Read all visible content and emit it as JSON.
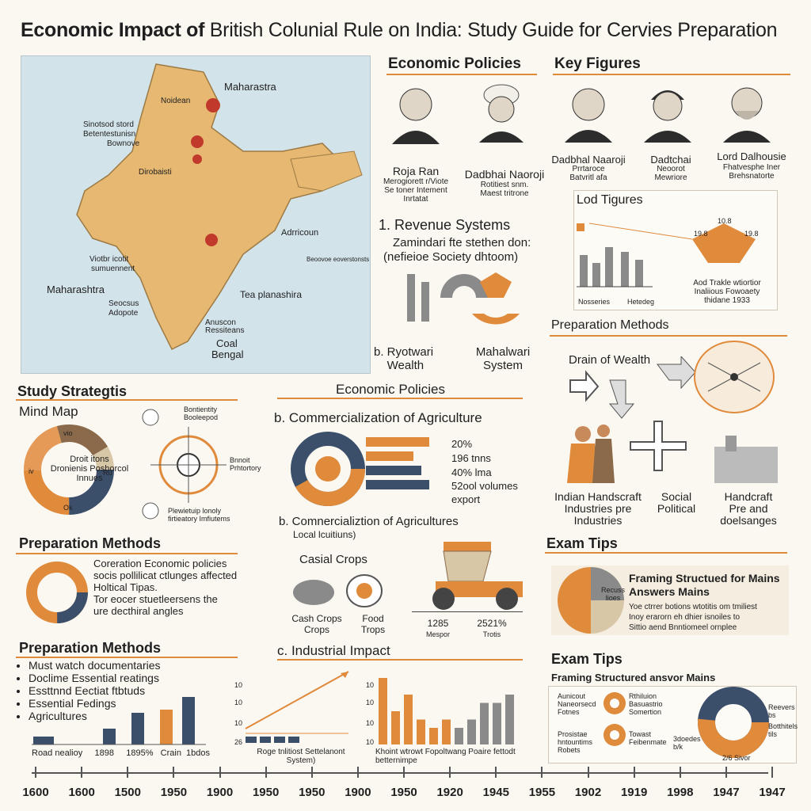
{
  "header": {
    "title_bold": "Economic Impact of",
    "title_rest": "British Colunial Rule on India: Study Guide for Cervies Preparation"
  },
  "map": {
    "labels": [
      "Maharastra",
      "Noidean",
      "Sinotsod stord",
      "Betentestunisn",
      "Bownove",
      "Dirobaisti",
      "Viotbr icotit",
      "sumuennent",
      "Maharashtra",
      "Seocsus",
      "Adopote",
      "Adrricoun",
      "Beoovoe eoverstonsts",
      "Tea planashira",
      "Anuscon",
      "Ressiteans",
      "Coal",
      "Bengal"
    ]
  },
  "econ_policies_top": {
    "heading": "Economic Policies",
    "p1_name": "Roja Ran",
    "p1_sub": "Merogiorett r/Viote\nSe toner Intement\nInrtatat",
    "p2_name": "Dadbhai Naoroji",
    "p2_sub": "Rotitiest snm.\nMaest tritrone"
  },
  "key_figures": {
    "heading": "Key Figures",
    "f1_name": "Dadbhal Naaroji",
    "f1_sub": "Prrtaroce\nBatvritl afa",
    "f2_name": "Dadtchai",
    "f2_sub": "Neoorot\nMewriore",
    "f3_name": "Lord Dalhousie",
    "f3_sub": "Fhatvesphe Iner\nBrehsnatorte"
  },
  "revenue": {
    "heading": "1. Revenue Systems",
    "line1": "Zamindari  fte stethen don:",
    "line2": "(nefieioe Society dhtoom)",
    "b_label": "b. Ryotwari\n    Wealth",
    "mahal_label": "Mahalwari\nSystem"
  },
  "lod": {
    "heading": "Lod Tigures",
    "ax1": "Nosseries",
    "ax2": "Hetedeg",
    "n1": "19.8",
    "n2": "10.8",
    "n3": "19.8",
    "cap": "Aod Trakle wtiortior\nInaliious Fowoaety\nthidane 1933"
  },
  "prep_methods_right": {
    "heading": "Preparation Methods",
    "drain": "Drain of Wealth"
  },
  "bottom_right_labels": {
    "a": "Indian Handscraft\nIndustries pre\nIndustries",
    "b": "Social\nPolitical",
    "c": "Handcraft\nPre and\ndoelsanges"
  },
  "study": {
    "heading": "Study Strategtis",
    "mindmap": "Mind Map",
    "center": "Droit itons\nDronienis Poshorcol\nInnues",
    "right1": "Bontientity\nBooleepod",
    "right2": "Bnnoit\nPrhtortory",
    "right3": "Plewietuip lonoly\nfirtieatory Imfiutems",
    "ring_labels": [
      "vio",
      "iv",
      "Ru",
      "Ok"
    ]
  },
  "econ_mid": {
    "heading": "Economic Policies",
    "sub": "b. Commercialization of Agriculture",
    "vals": [
      "20%",
      "196 tnns",
      "40% lma",
      "52ool volumes",
      "export"
    ],
    "sub2": "b. Comnercializtion of Agricultures",
    "sub2b": "Local lcuitiuns)",
    "crops_title": "Casial Crops",
    "crop1": "Cash Crops\nCrops",
    "crop2": "Food\nTrops",
    "n1": "1285",
    "n1b": "Mespor",
    "n2": "2521%",
    "n2b": "Trotis"
  },
  "prep1": {
    "heading": "Preparation Methods",
    "text": "Coreration Economic policies\nsocis pollilicat ctlunges affected\nHoltical Tipas.\nTor eocer stuetleersens the\nure decthiral angles"
  },
  "prep2": {
    "heading": "Preparation Methods",
    "bullets": [
      "Must watch documentaries",
      "Doclime Essential reatings",
      "Essttnnd Eectiat ftbtuds",
      "Essential Fedings",
      "Agricultures"
    ],
    "axis": "Road nealioy     1898     1895%   Crain  1bdos"
  },
  "chart_small_bars": {
    "type": "bar",
    "categories": [
      "Road nealioy",
      "1898",
      "1895%",
      "Crain",
      "1bdos"
    ],
    "values": [
      1,
      2,
      4,
      4.4,
      6
    ]
  },
  "industrial": {
    "heading": "c. Industrial Impact",
    "yticks": [
      "10",
      "10",
      "10",
      "26"
    ],
    "xlab1": "Roge tnlitiost Settelanont\nSystem)",
    "yticks2": [
      "10",
      "10",
      "10",
      "10"
    ],
    "xlab2": "Khoint wtrowt Fopoltwang  Poaire fettodt\nbetternimpe"
  },
  "chart_industrial_bars": {
    "type": "bar",
    "values": [
      8,
      4,
      6,
      3,
      2,
      3,
      2,
      3,
      5,
      5,
      6
    ]
  },
  "exam1": {
    "heading": "Exam Tips",
    "pie_label": "Recuss\nlioes",
    "title": "Framing Structued for Mains\nAnswers Mains",
    "body": "Yoe ctrrer botions wtotitis om tmiliest\nInoy erarorn eh dhier isnoiles to\nSittio aend Bnntiomeel ornplee"
  },
  "exam2": {
    "heading": "Exam Tips",
    "sub": "Framing Structured ansvor Mains",
    "l1": "Aunicout\nNaneorsecd\nFotnes",
    "l2": "Prosistae\nhntountims\nRobets",
    "r1": "Rthiluion\nBasuastrio\nSomertion",
    "r2": "Towast\nFeibenmate",
    "d1": "Reevers\nbs",
    "d2": "Botthitels\ntils",
    "d3": "3doedes\nb/k",
    "d4": "2/6 Sivor"
  },
  "timeline": [
    "1600",
    "1600",
    "1500",
    "1950",
    "1900",
    "1950",
    "1950",
    "1900",
    "1950",
    "1920",
    "1945",
    "1955",
    "1902",
    "1919",
    "1998",
    "1947",
    "1947"
  ],
  "colors": {
    "orange": "#e08a3c",
    "navy": "#3b4f6b",
    "grey": "#8a8a8a",
    "brown": "#8a6a4a",
    "tan": "#d8c7a6"
  }
}
